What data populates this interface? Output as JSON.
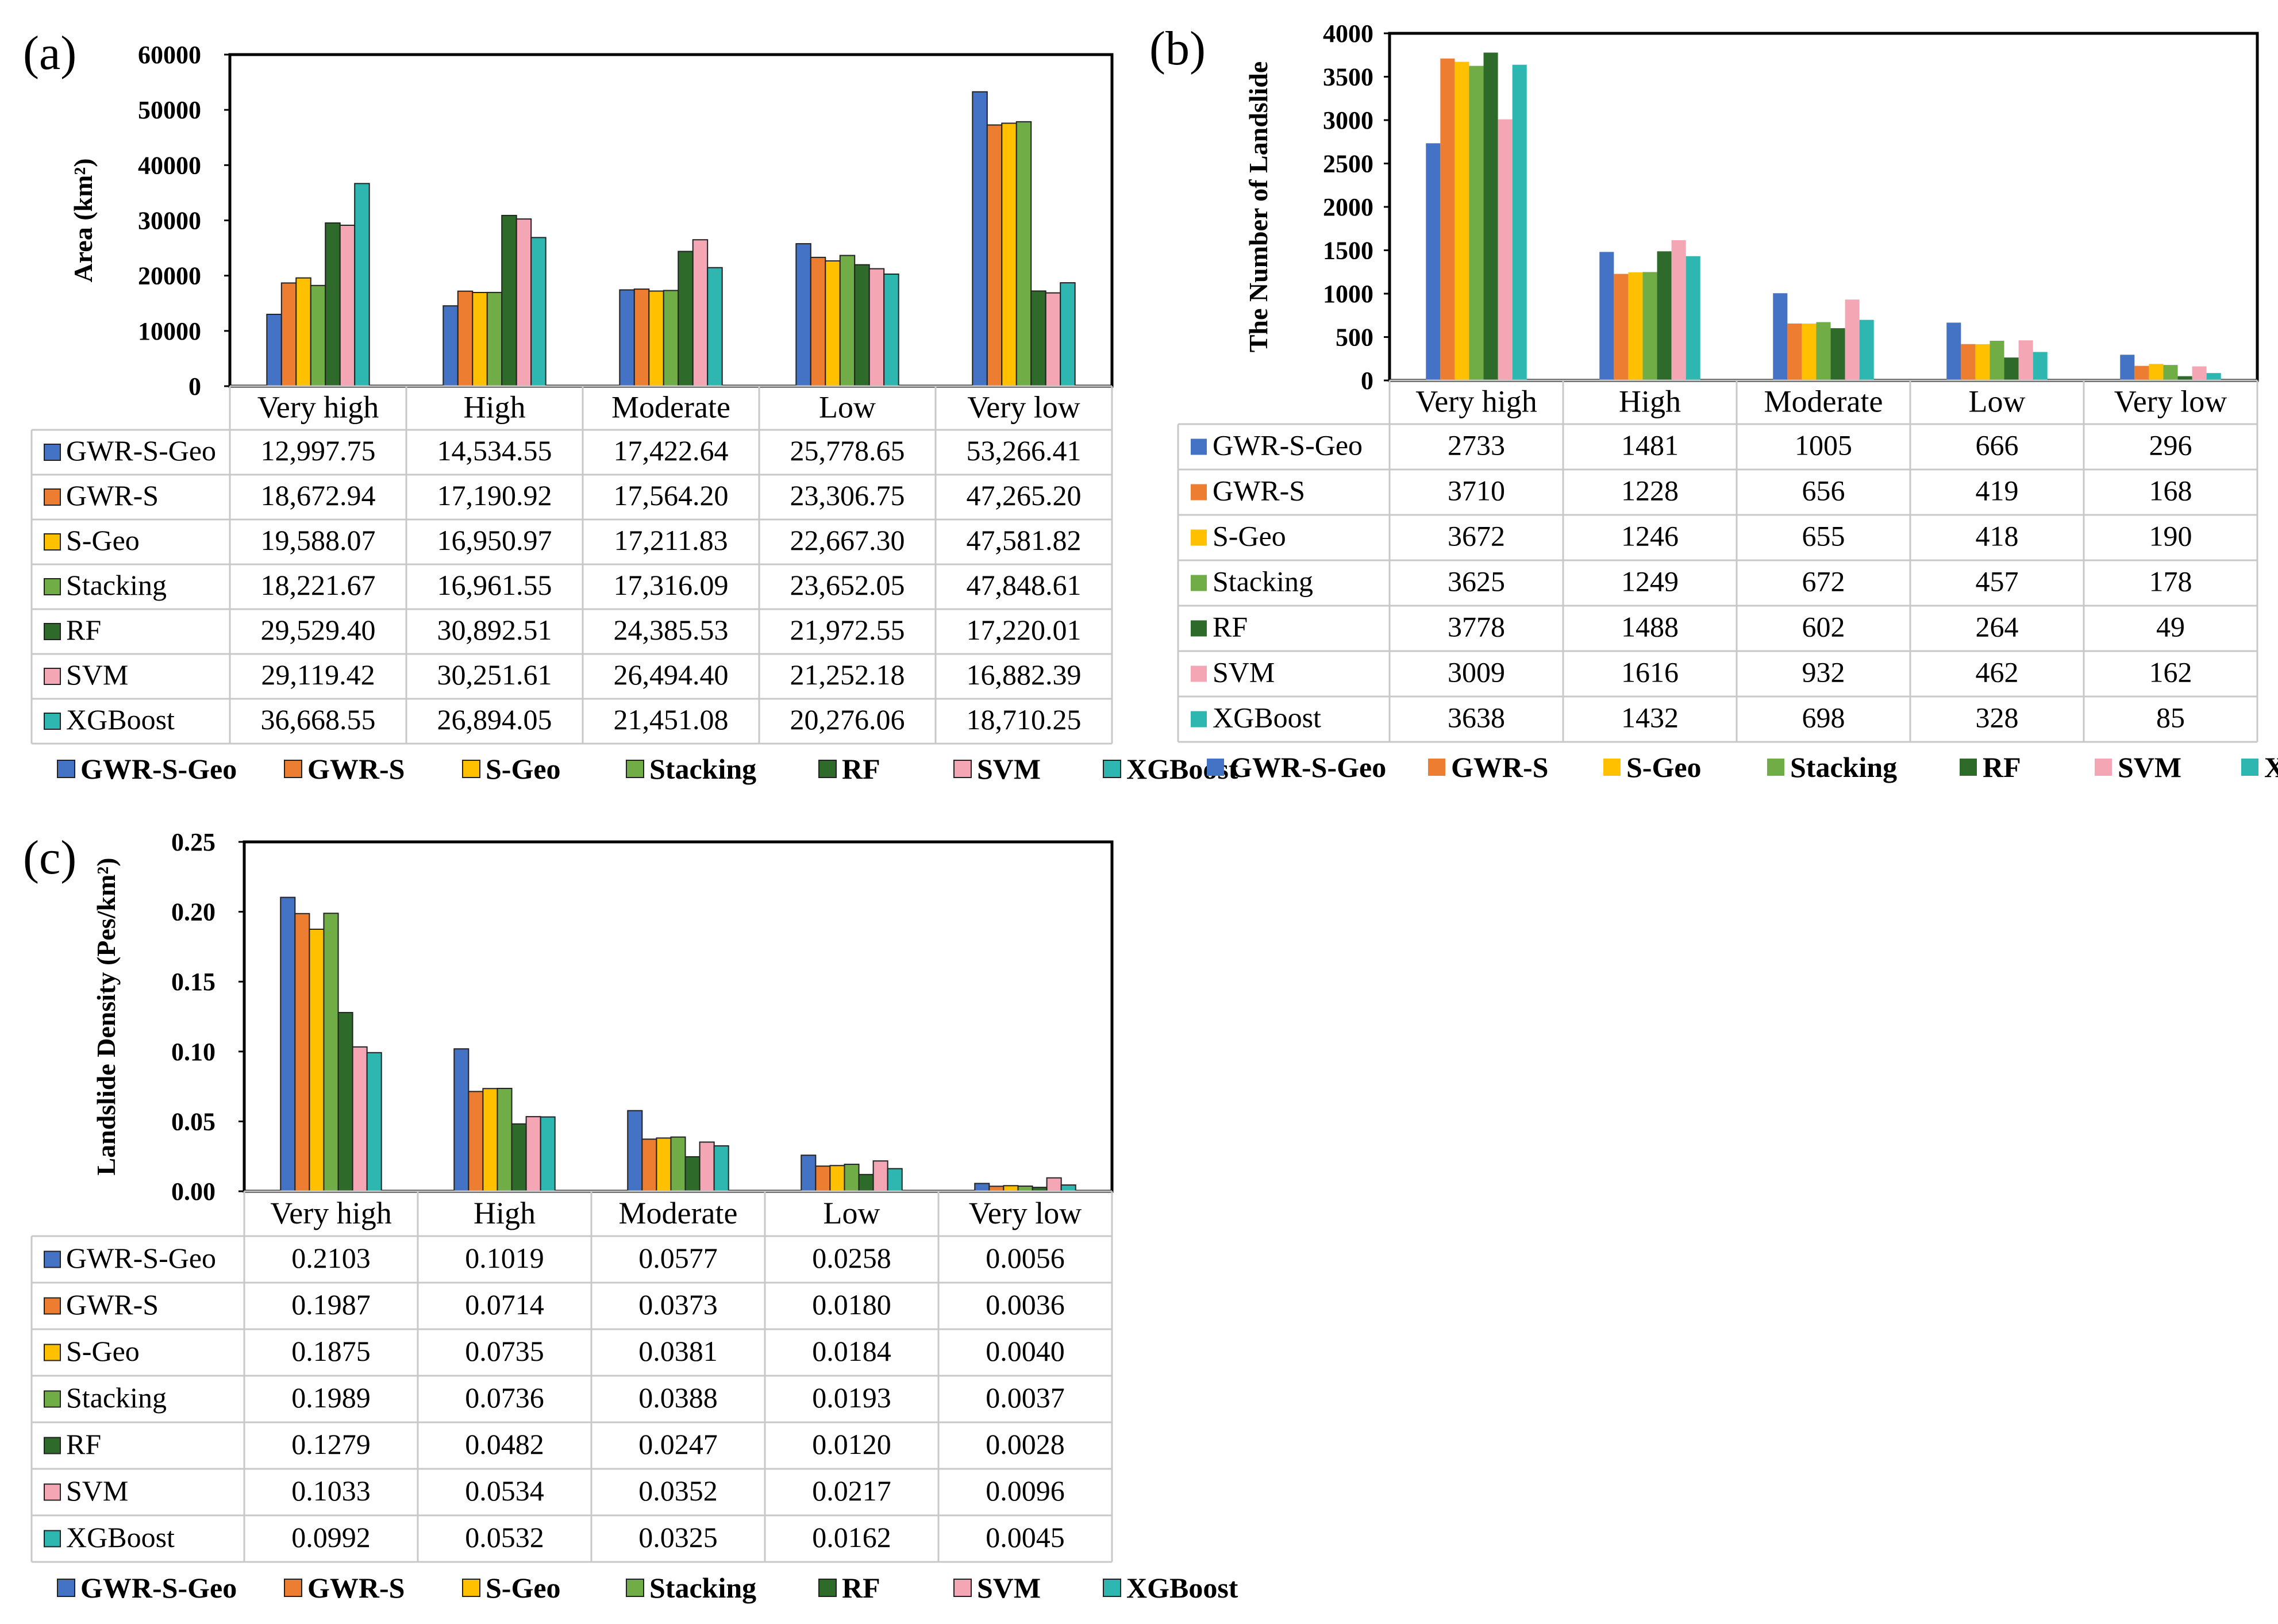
{
  "chart_data": [
    {
      "panel": "(a)",
      "type": "bar",
      "title": "",
      "xlabel": "",
      "ylabel": "Area (km²)",
      "ylim": [
        0,
        60000
      ],
      "yticks": [
        "0",
        "10000",
        "20000",
        "30000",
        "40000",
        "50000",
        "60000"
      ],
      "categories": [
        "Very high",
        "High",
        "Moderate",
        "Low",
        "Very low"
      ],
      "legend_position": "bottom",
      "series": [
        {
          "name": "GWR-S-Geo",
          "values": [
            12997.75,
            14534.55,
            17422.64,
            25778.65,
            53266.41
          ],
          "labels": [
            "12,997.75",
            "14,534.55",
            "17,422.64",
            "25,778.65",
            "53,266.41"
          ]
        },
        {
          "name": "GWR-S",
          "values": [
            18672.94,
            17190.92,
            17564.2,
            23306.75,
            47265.2
          ],
          "labels": [
            "18,672.94",
            "17,190.92",
            "17,564.20",
            "23,306.75",
            "47,265.20"
          ]
        },
        {
          "name": "S-Geo",
          "values": [
            19588.07,
            16950.97,
            17211.83,
            22667.3,
            47581.82
          ],
          "labels": [
            "19,588.07",
            "16,950.97",
            "17,211.83",
            "22,667.30",
            "47,581.82"
          ]
        },
        {
          "name": "Stacking",
          "values": [
            18221.67,
            16961.55,
            17316.09,
            23652.05,
            47848.61
          ],
          "labels": [
            "18,221.67",
            "16,961.55",
            "17,316.09",
            "23,652.05",
            "47,848.61"
          ]
        },
        {
          "name": "RF",
          "values": [
            29529.4,
            30892.51,
            24385.53,
            21972.55,
            17220.01
          ],
          "labels": [
            "29,529.40",
            "30,892.51",
            "24,385.53",
            "21,972.55",
            "17,220.01"
          ]
        },
        {
          "name": "SVM",
          "values": [
            29119.42,
            30251.61,
            26494.4,
            21252.18,
            16882.39
          ],
          "labels": [
            "29,119.42",
            "30,251.61",
            "26,494.40",
            "21,252.18",
            "16,882.39"
          ]
        },
        {
          "name": "XGBoost",
          "values": [
            36668.55,
            26894.05,
            21451.08,
            20276.06,
            18710.25
          ],
          "labels": [
            "36,668.55",
            "26,894.05",
            "21,451.08",
            "20,276.06",
            "18,710.25"
          ]
        }
      ]
    },
    {
      "panel": "(b)",
      "type": "bar",
      "title": "",
      "xlabel": "",
      "ylabel": "The Number of Landslide",
      "ylim": [
        0,
        4000
      ],
      "yticks": [
        "0",
        "500",
        "1000",
        "1500",
        "2000",
        "2500",
        "3000",
        "3500",
        "4000"
      ],
      "categories": [
        "Very high",
        "High",
        "Moderate",
        "Low",
        "Very low"
      ],
      "legend_position": "bottom",
      "series": [
        {
          "name": "GWR-S-Geo",
          "values": [
            2733,
            1481,
            1005,
            666,
            296
          ],
          "labels": [
            "2733",
            "1481",
            "1005",
            "666",
            "296"
          ]
        },
        {
          "name": "GWR-S",
          "values": [
            3710,
            1228,
            656,
            419,
            168
          ],
          "labels": [
            "3710",
            "1228",
            "656",
            "419",
            "168"
          ]
        },
        {
          "name": "S-Geo",
          "values": [
            3672,
            1246,
            655,
            418,
            190
          ],
          "labels": [
            "3672",
            "1246",
            "655",
            "418",
            "190"
          ]
        },
        {
          "name": "Stacking",
          "values": [
            3625,
            1249,
            672,
            457,
            178
          ],
          "labels": [
            "3625",
            "1249",
            "672",
            "457",
            "178"
          ]
        },
        {
          "name": "RF",
          "values": [
            3778,
            1488,
            602,
            264,
            49
          ],
          "labels": [
            "3778",
            "1488",
            "602",
            "264",
            "49"
          ]
        },
        {
          "name": "SVM",
          "values": [
            3009,
            1616,
            932,
            462,
            162
          ],
          "labels": [
            "3009",
            "1616",
            "932",
            "462",
            "162"
          ]
        },
        {
          "name": "XGBoost",
          "values": [
            3638,
            1432,
            698,
            328,
            85
          ],
          "labels": [
            "3638",
            "1432",
            "698",
            "328",
            "85"
          ]
        }
      ]
    },
    {
      "panel": "(c)",
      "type": "bar",
      "title": "",
      "xlabel": "",
      "ylabel": "Landslide Density (Pes/km²)",
      "ylim": [
        0,
        0.25
      ],
      "yticks": [
        "0.00",
        "0.05",
        "0.10",
        "0.15",
        "0.20",
        "0.25"
      ],
      "categories": [
        "Very high",
        "High",
        "Moderate",
        "Low",
        "Very low"
      ],
      "legend_position": "bottom",
      "series": [
        {
          "name": "GWR-S-Geo",
          "values": [
            0.2103,
            0.1019,
            0.0577,
            0.0258,
            0.0056
          ],
          "labels": [
            "0.2103",
            "0.1019",
            "0.0577",
            "0.0258",
            "0.0056"
          ]
        },
        {
          "name": "GWR-S",
          "values": [
            0.1987,
            0.0714,
            0.0373,
            0.018,
            0.0036
          ],
          "labels": [
            "0.1987",
            "0.0714",
            "0.0373",
            "0.0180",
            "0.0036"
          ]
        },
        {
          "name": "S-Geo",
          "values": [
            0.1875,
            0.0735,
            0.0381,
            0.0184,
            0.004
          ],
          "labels": [
            "0.1875",
            "0.0735",
            "0.0381",
            "0.0184",
            "0.0040"
          ]
        },
        {
          "name": "Stacking",
          "values": [
            0.1989,
            0.0736,
            0.0388,
            0.0193,
            0.0037
          ],
          "labels": [
            "0.1989",
            "0.0736",
            "0.0388",
            "0.0193",
            "0.0037"
          ]
        },
        {
          "name": "RF",
          "values": [
            0.1279,
            0.0482,
            0.0247,
            0.012,
            0.0028
          ],
          "labels": [
            "0.1279",
            "0.0482",
            "0.0247",
            "0.0120",
            "0.0028"
          ]
        },
        {
          "name": "SVM",
          "values": [
            0.1033,
            0.0534,
            0.0352,
            0.0217,
            0.0096
          ],
          "labels": [
            "0.1033",
            "0.0534",
            "0.0352",
            "0.0217",
            "0.0096"
          ]
        },
        {
          "name": "XGBoost",
          "values": [
            0.0992,
            0.0532,
            0.0325,
            0.0162,
            0.0045
          ],
          "labels": [
            "0.0992",
            "0.0532",
            "0.0325",
            "0.0162",
            "0.0045"
          ]
        }
      ]
    }
  ],
  "colors": {
    "GWR-S-Geo": "#4472C4",
    "GWR-S": "#ED7D31",
    "S-Geo": "#FFC000",
    "Stacking": "#70AD47",
    "RF": "#2E6B2A",
    "SVM": "#F4A6B4",
    "XGBoost": "#2EB7B0"
  }
}
